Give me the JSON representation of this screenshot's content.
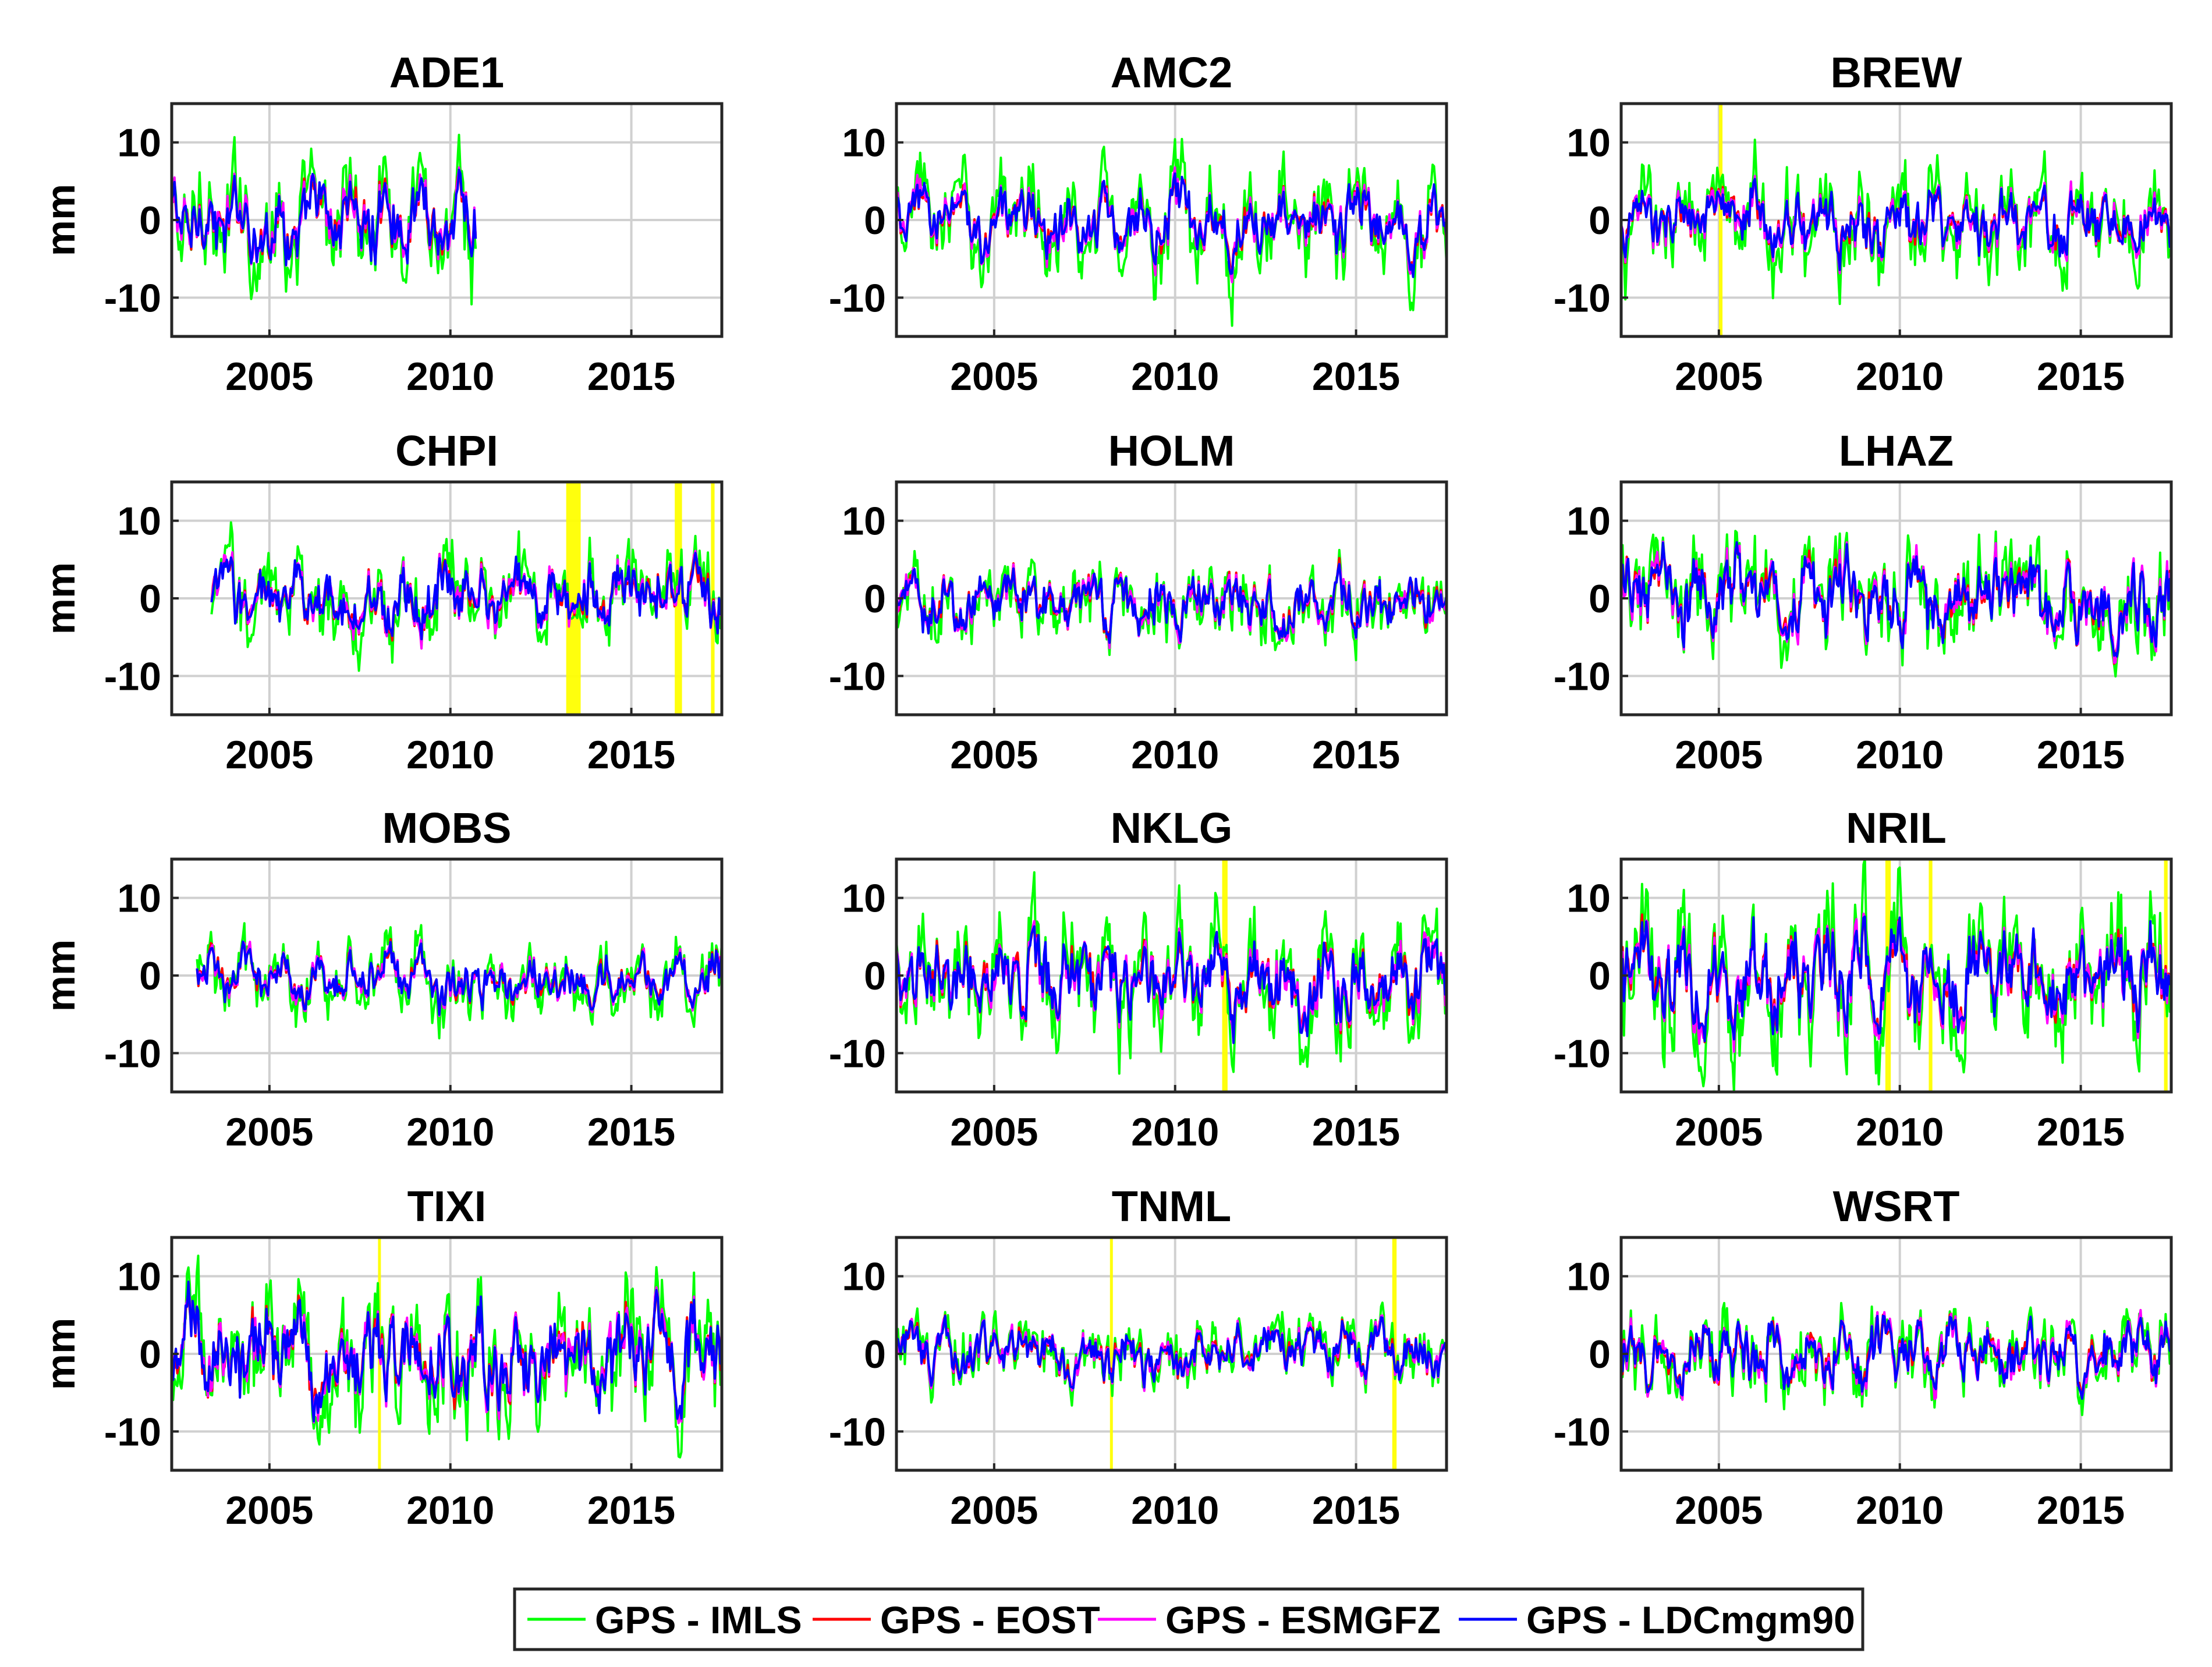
{
  "figure": {
    "legend": {
      "entries": [
        {
          "label": "GPS - IMLS",
          "color": "#00ff00"
        },
        {
          "label": "GPS - EOST",
          "color": "#ff0000"
        },
        {
          "label": "GPS - ESMGFZ",
          "color": "#ff00ff"
        },
        {
          "label": "GPS - LDCmgm90",
          "color": "#0000ff"
        }
      ]
    }
  },
  "chart_data": [
    {
      "type": "line",
      "title": "ADE1",
      "ylabel": "mm",
      "xlabel": "",
      "xlim": [
        2002.3,
        2017.5
      ],
      "ylim": [
        -15,
        15
      ],
      "xticks": [
        2005,
        2010,
        2015
      ],
      "yticks": [
        -10,
        0,
        10
      ],
      "grid": true,
      "x_start": 2002.3,
      "x_end": 2010.7,
      "amplitude": 5,
      "series_names": [
        "GPS - IMLS",
        "GPS - EOST",
        "GPS - ESMGFZ",
        "GPS - LDCmgm90"
      ],
      "highlight_bands": []
    },
    {
      "type": "line",
      "title": "AMC2",
      "ylabel": "",
      "xlabel": "",
      "xlim": [
        2002.3,
        2017.5
      ],
      "ylim": [
        -15,
        15
      ],
      "xticks": [
        2005,
        2010,
        2015
      ],
      "yticks": [
        -10,
        0,
        10
      ],
      "grid": true,
      "x_start": 2002.3,
      "x_end": 2017.5,
      "amplitude": 4,
      "series_names": [
        "GPS - IMLS",
        "GPS - EOST",
        "GPS - ESMGFZ",
        "GPS - LDCmgm90"
      ],
      "highlight_bands": []
    },
    {
      "type": "line",
      "title": "BREW",
      "ylabel": "",
      "xlabel": "",
      "xlim": [
        2002.3,
        2017.5
      ],
      "ylim": [
        -15,
        15
      ],
      "xticks": [
        2005,
        2010,
        2015
      ],
      "yticks": [
        -10,
        0,
        10
      ],
      "grid": true,
      "x_start": 2002.3,
      "x_end": 2017.5,
      "amplitude": 4,
      "series_names": [
        "GPS - IMLS",
        "GPS - EOST",
        "GPS - ESMGFZ",
        "GPS - LDCmgm90"
      ],
      "highlight_bands": [
        [
          2005.0,
          2005.1
        ]
      ]
    },
    {
      "type": "line",
      "title": "CHPI",
      "ylabel": "mm",
      "xlabel": "",
      "xlim": [
        2002.3,
        2017.5
      ],
      "ylim": [
        -15,
        15
      ],
      "xticks": [
        2005,
        2010,
        2015
      ],
      "yticks": [
        -10,
        0,
        10
      ],
      "grid": true,
      "x_start": 2003.4,
      "x_end": 2017.5,
      "amplitude": 4,
      "series_names": [
        "GPS - IMLS",
        "GPS - EOST",
        "GPS - ESMGFZ",
        "GPS - LDCmgm90"
      ],
      "highlight_bands": [
        [
          2013.2,
          2013.6
        ],
        [
          2016.2,
          2016.4
        ],
        [
          2017.2,
          2017.3
        ]
      ]
    },
    {
      "type": "line",
      "title": "HOLM",
      "ylabel": "",
      "xlabel": "",
      "xlim": [
        2002.3,
        2017.5
      ],
      "ylim": [
        -15,
        15
      ],
      "xticks": [
        2005,
        2010,
        2015
      ],
      "yticks": [
        -10,
        0,
        10
      ],
      "grid": true,
      "x_start": 2002.3,
      "x_end": 2017.5,
      "amplitude": 3.5,
      "series_names": [
        "GPS - IMLS",
        "GPS - EOST",
        "GPS - ESMGFZ",
        "GPS - LDCmgm90"
      ],
      "highlight_bands": []
    },
    {
      "type": "line",
      "title": "LHAZ",
      "ylabel": "",
      "xlabel": "",
      "xlim": [
        2002.3,
        2017.5
      ],
      "ylim": [
        -15,
        15
      ],
      "xticks": [
        2005,
        2010,
        2015
      ],
      "yticks": [
        -10,
        0,
        10
      ],
      "grid": true,
      "x_start": 2002.3,
      "x_end": 2017.5,
      "amplitude": 5,
      "series_names": [
        "GPS - IMLS",
        "GPS - EOST",
        "GPS - ESMGFZ",
        "GPS - LDCmgm90"
      ],
      "highlight_bands": []
    },
    {
      "type": "line",
      "title": "MOBS",
      "ylabel": "mm",
      "xlabel": "",
      "xlim": [
        2002.3,
        2017.5
      ],
      "ylim": [
        -15,
        15
      ],
      "xticks": [
        2005,
        2010,
        2015
      ],
      "yticks": [
        -10,
        0,
        10
      ],
      "grid": true,
      "x_start": 2003.0,
      "x_end": 2017.5,
      "amplitude": 3,
      "series_names": [
        "GPS - IMLS",
        "GPS - EOST",
        "GPS - ESMGFZ",
        "GPS - LDCmgm90"
      ],
      "highlight_bands": []
    },
    {
      "type": "line",
      "title": "NKLG",
      "ylabel": "",
      "xlabel": "",
      "xlim": [
        2002.3,
        2017.5
      ],
      "ylim": [
        -15,
        15
      ],
      "xticks": [
        2005,
        2010,
        2015
      ],
      "yticks": [
        -10,
        0,
        10
      ],
      "grid": true,
      "x_start": 2002.3,
      "x_end": 2017.5,
      "amplitude": 5,
      "series_names": [
        "GPS - IMLS",
        "GPS - EOST",
        "GPS - ESMGFZ",
        "GPS - LDCmgm90"
      ],
      "highlight_bands": [
        [
          2011.3,
          2011.45
        ]
      ]
    },
    {
      "type": "line",
      "title": "NRIL",
      "ylabel": "",
      "xlabel": "",
      "xlim": [
        2002.3,
        2017.5
      ],
      "ylim": [
        -15,
        15
      ],
      "xticks": [
        2005,
        2010,
        2015
      ],
      "yticks": [
        -10,
        0,
        10
      ],
      "grid": true,
      "x_start": 2002.3,
      "x_end": 2017.5,
      "amplitude": 6,
      "series_names": [
        "GPS - IMLS",
        "GPS - EOST",
        "GPS - ESMGFZ",
        "GPS - LDCmgm90"
      ],
      "highlight_bands": [
        [
          2009.6,
          2009.75
        ],
        [
          2010.8,
          2010.9
        ],
        [
          2017.3,
          2017.4
        ]
      ]
    },
    {
      "type": "line",
      "title": "TIXI",
      "ylabel": "mm",
      "xlabel": "",
      "xlim": [
        2002.3,
        2017.5
      ],
      "ylim": [
        -15,
        15
      ],
      "xticks": [
        2005,
        2010,
        2015
      ],
      "yticks": [
        -10,
        0,
        10
      ],
      "grid": true,
      "x_start": 2002.3,
      "x_end": 2017.5,
      "amplitude": 6,
      "series_names": [
        "GPS - IMLS",
        "GPS - EOST",
        "GPS - ESMGFZ",
        "GPS - LDCmgm90"
      ],
      "highlight_bands": [
        [
          2008.0,
          2008.08
        ]
      ]
    },
    {
      "type": "line",
      "title": "TNML",
      "ylabel": "",
      "xlabel": "",
      "xlim": [
        2002.3,
        2017.5
      ],
      "ylim": [
        -15,
        15
      ],
      "xticks": [
        2005,
        2010,
        2015
      ],
      "yticks": [
        -10,
        0,
        10
      ],
      "grid": true,
      "x_start": 2002.3,
      "x_end": 2017.5,
      "amplitude": 3,
      "series_names": [
        "GPS - IMLS",
        "GPS - EOST",
        "GPS - ESMGFZ",
        "GPS - LDCmgm90"
      ],
      "highlight_bands": [
        [
          2008.2,
          2008.28
        ],
        [
          2016.0,
          2016.12
        ]
      ]
    },
    {
      "type": "line",
      "title": "WSRT",
      "ylabel": "",
      "xlabel": "",
      "xlim": [
        2002.3,
        2017.5
      ],
      "ylim": [
        -15,
        15
      ],
      "xticks": [
        2005,
        2010,
        2015
      ],
      "yticks": [
        -10,
        0,
        10
      ],
      "grid": true,
      "x_start": 2002.3,
      "x_end": 2017.5,
      "amplitude": 4,
      "series_names": [
        "GPS - IMLS",
        "GPS - EOST",
        "GPS - ESMGFZ",
        "GPS - LDCmgm90"
      ],
      "highlight_bands": []
    }
  ]
}
